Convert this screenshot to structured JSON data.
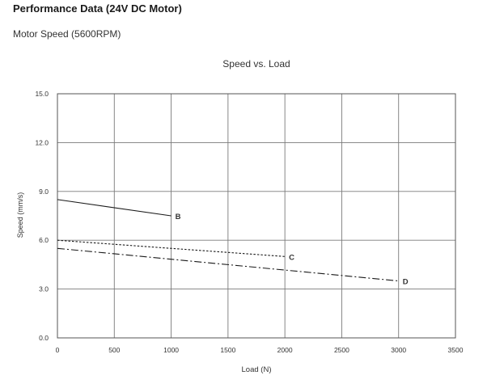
{
  "page": {
    "heading": "Performance Data (24V DC Motor)",
    "subheading": "Motor Speed (5600RPM)"
  },
  "chart_data": {
    "type": "line",
    "title": "Speed vs. Load",
    "xlabel": "Load (N)",
    "ylabel": "Speed (mm/s)",
    "xlim": [
      0,
      3500
    ],
    "ylim": [
      0,
      15
    ],
    "xticks": [
      0,
      500,
      1000,
      1500,
      2000,
      2500,
      3000,
      3500
    ],
    "xtick_labels": [
      "0",
      "500",
      "1000",
      "1500",
      "2000",
      "2500",
      "3000",
      "3500"
    ],
    "yticks": [
      0,
      3,
      6,
      9,
      12,
      15
    ],
    "ytick_labels": [
      "0.0",
      "3.0",
      "6.0",
      "9.0",
      "12.0",
      "15.0"
    ],
    "grid": true,
    "line_color": "#1a1a1a",
    "grid_color": "#7a7a7a",
    "series": [
      {
        "name": "B",
        "style": "solid",
        "x": [
          0,
          1000
        ],
        "y": [
          8.5,
          7.5
        ]
      },
      {
        "name": "C",
        "style": "dotted",
        "x": [
          0,
          2000
        ],
        "y": [
          6.0,
          5.0
        ]
      },
      {
        "name": "D",
        "style": "dashdot",
        "x": [
          0,
          3000
        ],
        "y": [
          5.5,
          3.5
        ]
      }
    ]
  }
}
